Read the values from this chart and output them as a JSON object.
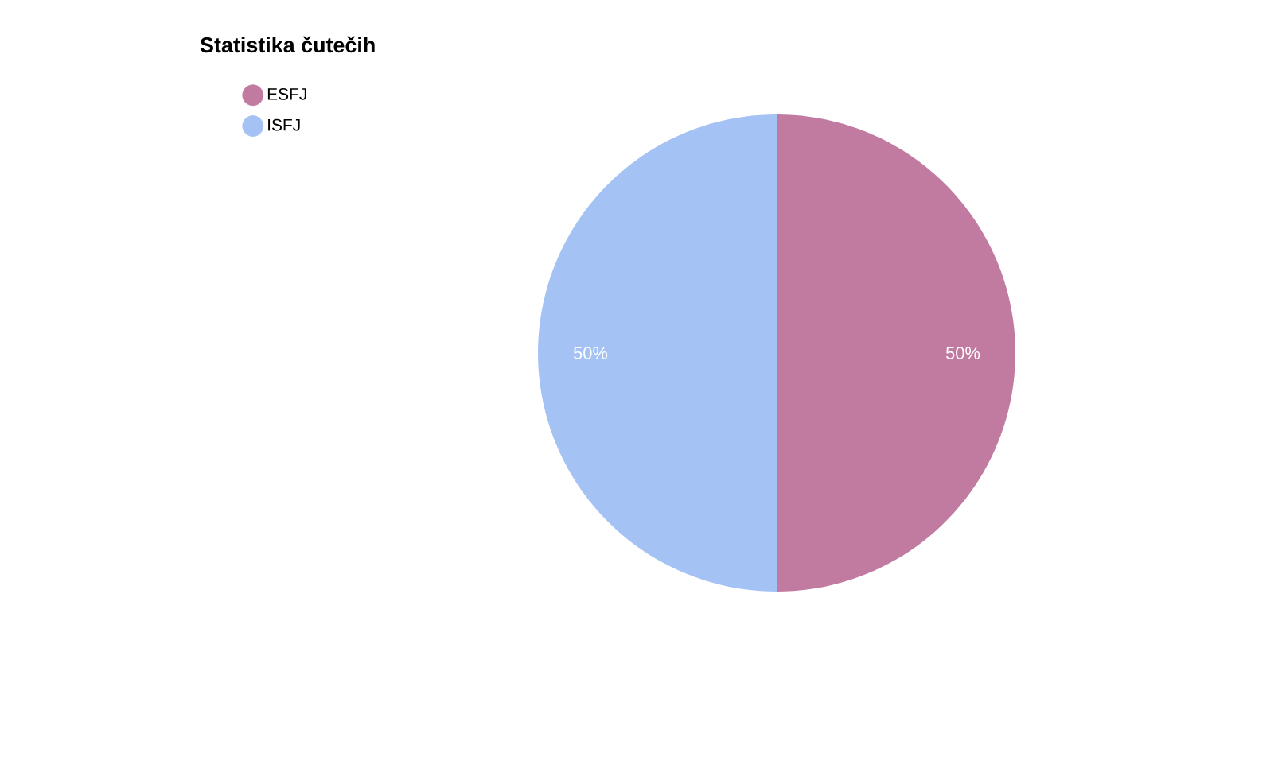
{
  "chart_data": {
    "type": "pie",
    "title": "Statistika čutečih",
    "categories": [
      "ESFJ",
      "ISFJ"
    ],
    "values": [
      50,
      50
    ],
    "colors": [
      "#c27ba0",
      "#a4c2f4"
    ],
    "value_labels": [
      "50%",
      "50%"
    ],
    "legend": "top left"
  }
}
